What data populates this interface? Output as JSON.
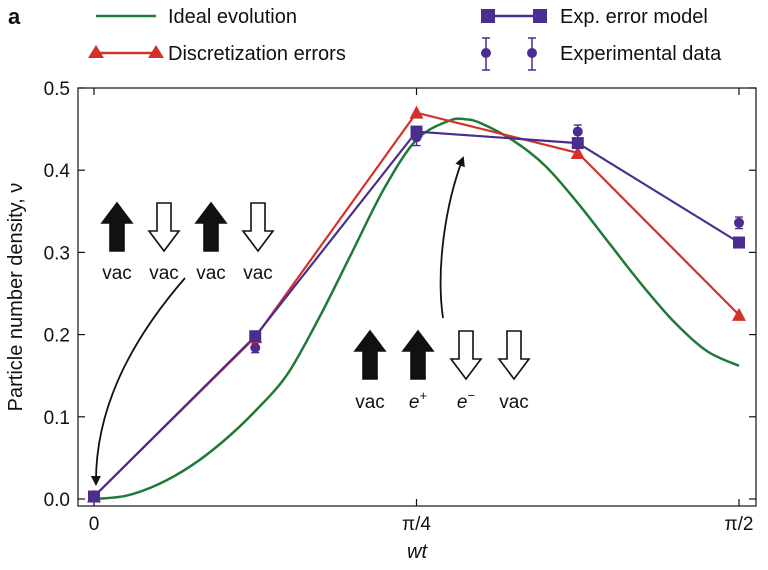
{
  "chart_data": {
    "type": "line",
    "panel_label": "a",
    "xlabel": "wt",
    "ylabel": "Particle number density, ν",
    "xlim": [
      0,
      1.5708
    ],
    "ylim": [
      0,
      0.5
    ],
    "x_ticks": [
      {
        "value": 0,
        "label": "0"
      },
      {
        "value": 0.7854,
        "label": "π/4"
      },
      {
        "value": 1.5708,
        "label": "π/2"
      }
    ],
    "y_ticks": [
      {
        "value": 0.0,
        "label": "0.0"
      },
      {
        "value": 0.1,
        "label": "0.1"
      },
      {
        "value": 0.2,
        "label": "0.2"
      },
      {
        "value": 0.3,
        "label": "0.3"
      },
      {
        "value": 0.4,
        "label": "0.4"
      },
      {
        "value": 0.5,
        "label": "0.5"
      }
    ],
    "legend": {
      "position": "top",
      "entries": [
        {
          "label": "Ideal evolution",
          "series": "ideal"
        },
        {
          "label": "Discretization errors",
          "series": "discretization"
        },
        {
          "label": "Exp. error model",
          "series": "error_model"
        },
        {
          "label": "Experimental data",
          "series": "experimental"
        }
      ]
    },
    "series": [
      {
        "id": "ideal",
        "name": "Ideal evolution",
        "color": "#1f7a3a",
        "marker": "none",
        "x": [
          0,
          0.0785,
          0.1571,
          0.2356,
          0.3142,
          0.3927,
          0.4712,
          0.5498,
          0.6283,
          0.7069,
          0.7854,
          0.8639,
          0.9032,
          0.9425,
          1.021,
          1.0996,
          1.1781,
          1.2566,
          1.3352,
          1.4137,
          1.4923,
          1.5708
        ],
        "y": [
          0,
          0.004,
          0.018,
          0.04,
          0.07,
          0.107,
          0.152,
          0.222,
          0.3,
          0.378,
          0.437,
          0.46,
          0.462,
          0.457,
          0.436,
          0.405,
          0.36,
          0.31,
          0.26,
          0.215,
          0.18,
          0.162
        ]
      },
      {
        "id": "discretization",
        "name": "Discretization errors",
        "color": "#d3322a",
        "marker": "triangle",
        "x": [
          0,
          0.3927,
          0.7854,
          1.1781,
          1.5708
        ],
        "y": [
          0.003,
          0.197,
          0.47,
          0.421,
          0.224
        ]
      },
      {
        "id": "error_model",
        "name": "Exp. error model",
        "color": "#4b2d8f",
        "marker": "square",
        "x": [
          0,
          0.3927,
          0.7854,
          1.1781,
          1.5708
        ],
        "y": [
          0.003,
          0.198,
          0.447,
          0.433,
          0.312
        ]
      },
      {
        "id": "experimental",
        "name": "Experimental data",
        "color": "#4b2d8f",
        "marker": "circle-errorbar",
        "x": [
          0,
          0.3927,
          0.7854,
          1.1781,
          1.5708
        ],
        "y": [
          0.003,
          0.184,
          0.44,
          0.447,
          0.336
        ],
        "err": [
          0.003,
          0.006,
          0.01,
          0.008,
          0.007
        ]
      }
    ],
    "annotations": [
      {
        "id": "state-vacuum",
        "spins": [
          "up",
          "down",
          "up",
          "down"
        ],
        "labels": [
          {
            "text": "vac",
            "sup": ""
          },
          {
            "text": "vac",
            "sup": ""
          },
          {
            "text": "vac",
            "sup": ""
          },
          {
            "text": "vac",
            "sup": ""
          }
        ],
        "points_to": [
          0,
          0.003
        ]
      },
      {
        "id": "state-pair",
        "spins": [
          "up",
          "up",
          "down",
          "down"
        ],
        "labels": [
          {
            "text": "vac",
            "sup": ""
          },
          {
            "text": "e",
            "sup": "+"
          },
          {
            "text": "e",
            "sup": "−"
          },
          {
            "text": "vac",
            "sup": ""
          }
        ],
        "points_to": [
          0.9,
          0.432
        ]
      }
    ]
  }
}
